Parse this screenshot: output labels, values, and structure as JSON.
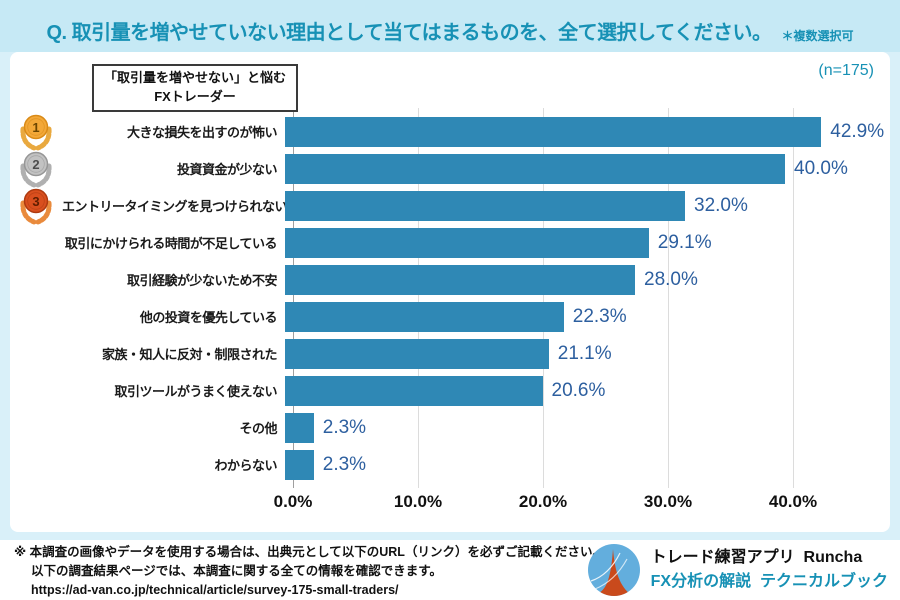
{
  "header": {
    "title": "Q. 取引量を増やせていない理由として当てはまるものを、全て選択してください。",
    "note": "＊複数選択可"
  },
  "panel": {
    "legend_line1": "「取引量を増やせない」と悩む",
    "legend_line2": "FXトレーダー",
    "sample_size": "(n=175)"
  },
  "chart_data": {
    "type": "bar",
    "orientation": "horizontal",
    "title": "取引量を増やせていない理由（複数選択可）",
    "categories": [
      "大きな損失を出すのが怖い",
      "投資資金が少ない",
      "エントリータイミングを見つけられない",
      "取引にかけられる時間が不足している",
      "取引経験が少ないため不安",
      "他の投資を優先している",
      "家族・知人に反対・制限された",
      "取引ツールがうまく使えない",
      "その他",
      "わからない"
    ],
    "values": [
      42.9,
      40.0,
      32.0,
      29.1,
      28.0,
      22.3,
      21.1,
      20.6,
      2.3,
      2.3
    ],
    "value_labels": [
      "42.9%",
      "40.0%",
      "32.0%",
      "29.1%",
      "28.0%",
      "22.3%",
      "21.1%",
      "20.6%",
      "2.3%",
      "2.3%"
    ],
    "x_ticks": [
      "0.0%",
      "10.0%",
      "20.0%",
      "30.0%",
      "40.0%"
    ],
    "xlim": [
      0,
      47
    ],
    "grid": true,
    "sample_size": 175,
    "ranks": [
      "gold",
      "silver",
      "bronze"
    ],
    "bar_color": "#2f88b5",
    "value_label_color": "#2d5f9f",
    "medal_colors": {
      "gold": {
        "main": "#f3a838",
        "rim": "#d98a17",
        "leaf": "#e9a93f",
        "num": "#6b4500"
      },
      "silver": {
        "main": "#c2c2c2",
        "rim": "#969696",
        "leaf": "#b0b0b0",
        "num": "#4d4d4d"
      },
      "bronze": {
        "main": "#d94f1e",
        "rim": "#ae3a10",
        "leaf": "#e98a3c",
        "num": "#5e1d00"
      }
    }
  },
  "footer": {
    "note_line1": "※ 本調査の画像やデータを使用する場合は、出典元として以下のURL（リンク）を必ずご記載ください。",
    "note_line2": "以下の調査結果ページでは、本調査に関する全ての情報を確認できます。",
    "note_line3": "https://ad-van.co.jp/technical/article/survey-175-small-traders/",
    "brand_line1": "トレード練習アプリ  Runcha",
    "brand_line2": "FX分析の解説  テクニカルブック",
    "logo_colors": {
      "circle": "#63aedd",
      "spike": "#c94a1c",
      "arc": "#ffffff"
    }
  },
  "colors": {
    "accent_teal": "#1791b5",
    "page_background": "#d9f0f9",
    "title_strip_background": "#c6e9f5",
    "panel_background": "#ffffff"
  }
}
